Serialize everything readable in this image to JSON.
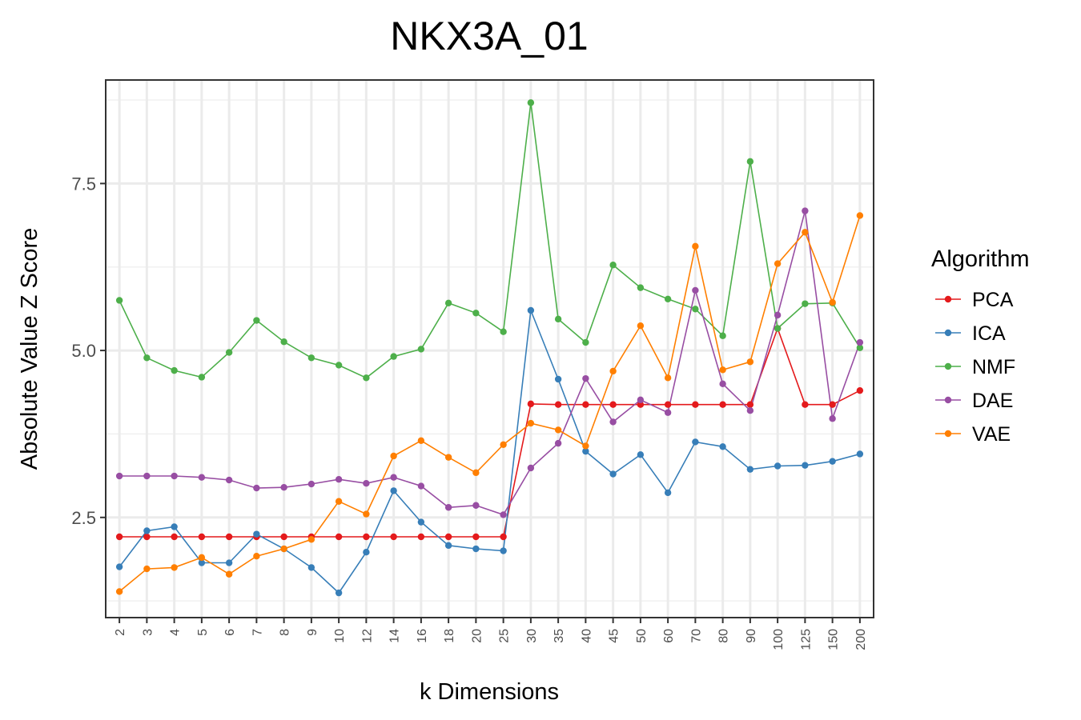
{
  "chart_data": {
    "type": "line",
    "title": "NKX3A_01",
    "xlabel": "k Dimensions",
    "ylabel": "Absolute Value Z Score",
    "categories": [
      "2",
      "3",
      "4",
      "5",
      "6",
      "7",
      "8",
      "9",
      "10",
      "12",
      "14",
      "16",
      "18",
      "20",
      "25",
      "30",
      "35",
      "40",
      "45",
      "50",
      "60",
      "70",
      "80",
      "90",
      "100",
      "125",
      "150",
      "200"
    ],
    "y_ticks": [
      2.5,
      5.0,
      7.5
    ],
    "y_tick_labels": [
      "2.5",
      "5.0",
      "7.5"
    ],
    "ylim": [
      1.0,
      9.05
    ],
    "grid": true,
    "legend": {
      "title": "Algorithm",
      "position": "right"
    },
    "series": [
      {
        "name": "PCA",
        "color": "#E41A1C",
        "values": [
          2.21,
          2.21,
          2.21,
          2.21,
          2.21,
          2.21,
          2.21,
          2.21,
          2.21,
          2.21,
          2.21,
          2.21,
          2.21,
          2.21,
          2.21,
          4.2,
          4.19,
          4.19,
          4.19,
          4.19,
          4.19,
          4.19,
          4.19,
          4.19,
          5.33,
          4.19,
          4.19,
          4.4
        ]
      },
      {
        "name": "ICA",
        "color": "#377EB8",
        "values": [
          1.76,
          2.3,
          2.36,
          1.82,
          1.82,
          2.25,
          2.03,
          1.75,
          1.37,
          1.98,
          2.9,
          2.43,
          2.08,
          2.03,
          2.0,
          5.6,
          4.57,
          3.49,
          3.15,
          3.44,
          2.87,
          3.63,
          3.56,
          3.22,
          3.27,
          3.28,
          3.34,
          3.45
        ]
      },
      {
        "name": "NMF",
        "color": "#4DAF4A",
        "values": [
          5.75,
          4.89,
          4.7,
          4.6,
          4.97,
          5.45,
          5.13,
          4.89,
          4.78,
          4.59,
          4.91,
          5.02,
          5.71,
          5.56,
          5.28,
          8.71,
          5.47,
          5.12,
          6.28,
          5.94,
          5.77,
          5.62,
          5.22,
          7.83,
          5.33,
          5.7,
          5.71,
          5.04
        ]
      },
      {
        "name": "DAE",
        "color": "#984EA3",
        "values": [
          3.12,
          3.12,
          3.12,
          3.1,
          3.06,
          2.94,
          2.95,
          3.0,
          3.07,
          3.01,
          3.1,
          2.97,
          2.65,
          2.68,
          2.54,
          3.24,
          3.61,
          4.58,
          3.93,
          4.26,
          4.07,
          5.9,
          4.5,
          4.1,
          5.53,
          7.09,
          3.98,
          5.12
        ]
      },
      {
        "name": "VAE",
        "color": "#FF7F00",
        "values": [
          1.39,
          1.73,
          1.75,
          1.9,
          1.65,
          1.92,
          2.03,
          2.17,
          2.74,
          2.55,
          3.42,
          3.65,
          3.4,
          3.17,
          3.59,
          3.91,
          3.81,
          3.57,
          4.69,
          5.37,
          4.59,
          6.56,
          4.71,
          4.83,
          6.3,
          6.77,
          5.72,
          7.02
        ]
      }
    ]
  }
}
